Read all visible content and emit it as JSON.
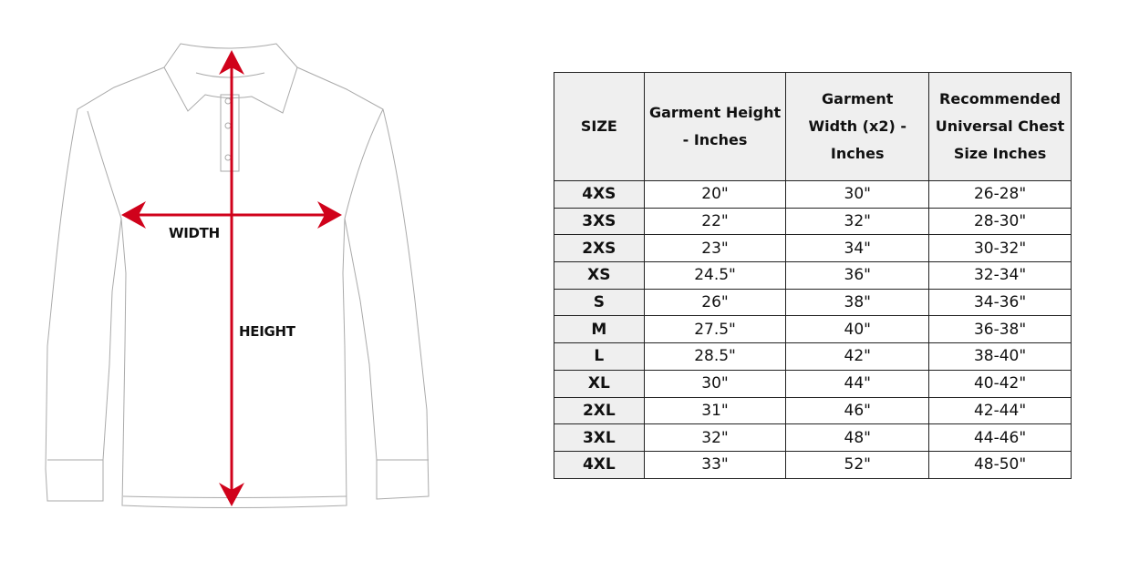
{
  "diagram": {
    "width_label": "WIDTH",
    "height_label": "HEIGHT",
    "arrow_color": "#d0021b"
  },
  "table": {
    "headers": [
      "SIZE",
      "Garment Height - Inches",
      "Garment Width (x2) - Inches",
      "Recommended Universal Chest Size Inches"
    ],
    "rows": [
      [
        "4XS",
        "20\"",
        "30\"",
        "26-28\""
      ],
      [
        "3XS",
        "22\"",
        "32\"",
        "28-30\""
      ],
      [
        "2XS",
        "23\"",
        "34\"",
        "30-32\""
      ],
      [
        "XS",
        "24.5\"",
        "36\"",
        "32-34\""
      ],
      [
        "S",
        "26\"",
        "38\"",
        "34-36\""
      ],
      [
        "M",
        "27.5\"",
        "40\"",
        "36-38\""
      ],
      [
        "L",
        "28.5\"",
        "42\"",
        "38-40\""
      ],
      [
        "XL",
        "30\"",
        "44\"",
        "40-42\""
      ],
      [
        "2XL",
        "31\"",
        "46\"",
        "42-44\""
      ],
      [
        "3XL",
        "32\"",
        "48\"",
        "44-46\""
      ],
      [
        "4XL",
        "33\"",
        "52\"",
        "48-50\""
      ]
    ]
  }
}
